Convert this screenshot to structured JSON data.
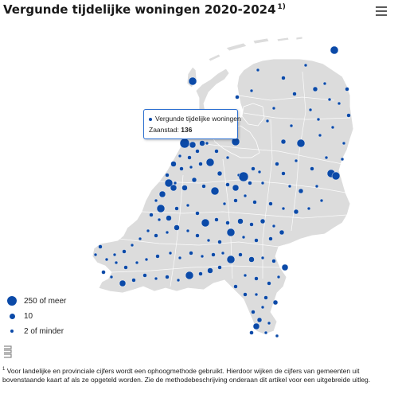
{
  "title": "Vergunde tijdelijke woningen 2020-2024",
  "title_footnote_ref": "1)",
  "menu_icon": "hamburger-menu-icon",
  "tooltip": {
    "series_label": "Vergunde tijdelijke woningen",
    "name": "Zaanstad:",
    "value": "136"
  },
  "legend": [
    {
      "label": "250 of meer",
      "size": "large"
    },
    {
      "label": "10",
      "size": "medium"
    },
    {
      "label": "2 of minder",
      "size": "small"
    }
  ],
  "logo_icon": "cbs-logo-icon",
  "footnote": {
    "marker": "1",
    "text": "Voor landelijke en provinciale cijfers wordt een ophoogmethode gebruikt. Hierdoor wijken de cijfers van gemeenten uit bovenstaande kaart af als ze opgeteld worden. Zie de methodebeschrijving onderaan dit artikel voor een uitgebreide uitleg."
  },
  "colors": {
    "marker": "#0b4aa8",
    "land": "#dcdcdc",
    "border": "#ffffff",
    "tooltip_border": "#2c6fd1"
  }
}
